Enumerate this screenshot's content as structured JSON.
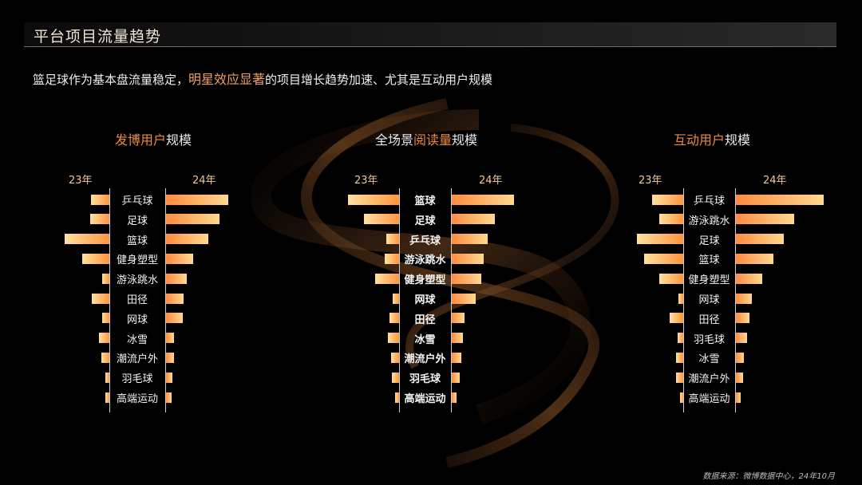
{
  "header": {
    "title": "平台项目流量趋势"
  },
  "subtitle": {
    "before": "篮足球作为基本盘流量稳定，",
    "highlight": "明星效应显著",
    "after": "的项目增长趋势加速、尤其是互动用户规模"
  },
  "footnote": "数据来源：微博数据中心，24年10月",
  "colors": {
    "accent": "#ee8a3e",
    "bar_light": "#ffe0a0",
    "bar_dark": "#ff9640",
    "background": "#000000"
  },
  "chart_data": [
    {
      "type": "bar",
      "title": "发博用户规模",
      "title_hl": "发博用户",
      "title_rest": "规模",
      "year_left": "23年",
      "year_right": "24年",
      "categories": [
        "乒乓球",
        "足球",
        "篮球",
        "健身塑型",
        "游泳跳水",
        "田径",
        "网球",
        "冰雪",
        "潮流户外",
        "羽毛球",
        "高端运动"
      ],
      "series": [
        {
          "name": "23年",
          "values": [
            29,
            30,
            70,
            42,
            11,
            28,
            11,
            16,
            12,
            6,
            6
          ]
        },
        {
          "name": "24年",
          "values": [
            97,
            84,
            66,
            43,
            33,
            27,
            26,
            13,
            12,
            10,
            9
          ]
        }
      ]
    },
    {
      "type": "bar",
      "title": "全场景阅读量规模",
      "title_pre": "全场景",
      "title_hl": "阅读量",
      "title_rest": "规模",
      "year_left": "23年",
      "year_right": "24年",
      "categories": [
        "篮球",
        "足球",
        "乒乓球",
        "游泳跳水",
        "健身塑型",
        "网球",
        "田径",
        "冰雪",
        "潮流户外",
        "羽毛球",
        "高端运动"
      ],
      "series": [
        {
          "name": "23年",
          "values": [
            80,
            55,
            20,
            22,
            37,
            10,
            15,
            18,
            13,
            11,
            6
          ]
        },
        {
          "name": "24年",
          "values": [
            97,
            68,
            56,
            50,
            46,
            38,
            20,
            18,
            15,
            13,
            7
          ]
        }
      ]
    },
    {
      "type": "bar",
      "title": "互动用户规模",
      "title_hl": "互动用户",
      "title_rest": "规模",
      "year_left": "23年",
      "year_right": "24年",
      "categories": [
        "乒乓球",
        "游泳跳水",
        "足球",
        "篮球",
        "健身塑型",
        "网球",
        "田径",
        "羽毛球",
        "冰雪",
        "潮流户外",
        "高端运动"
      ],
      "series": [
        {
          "name": "23年",
          "values": [
            49,
            37,
            73,
            61,
            37,
            8,
            21,
            9,
            11,
            11,
            5
          ]
        },
        {
          "name": "24年",
          "values": [
            137,
            91,
            75,
            59,
            41,
            25,
            21,
            17,
            13,
            11,
            7
          ]
        }
      ]
    }
  ]
}
